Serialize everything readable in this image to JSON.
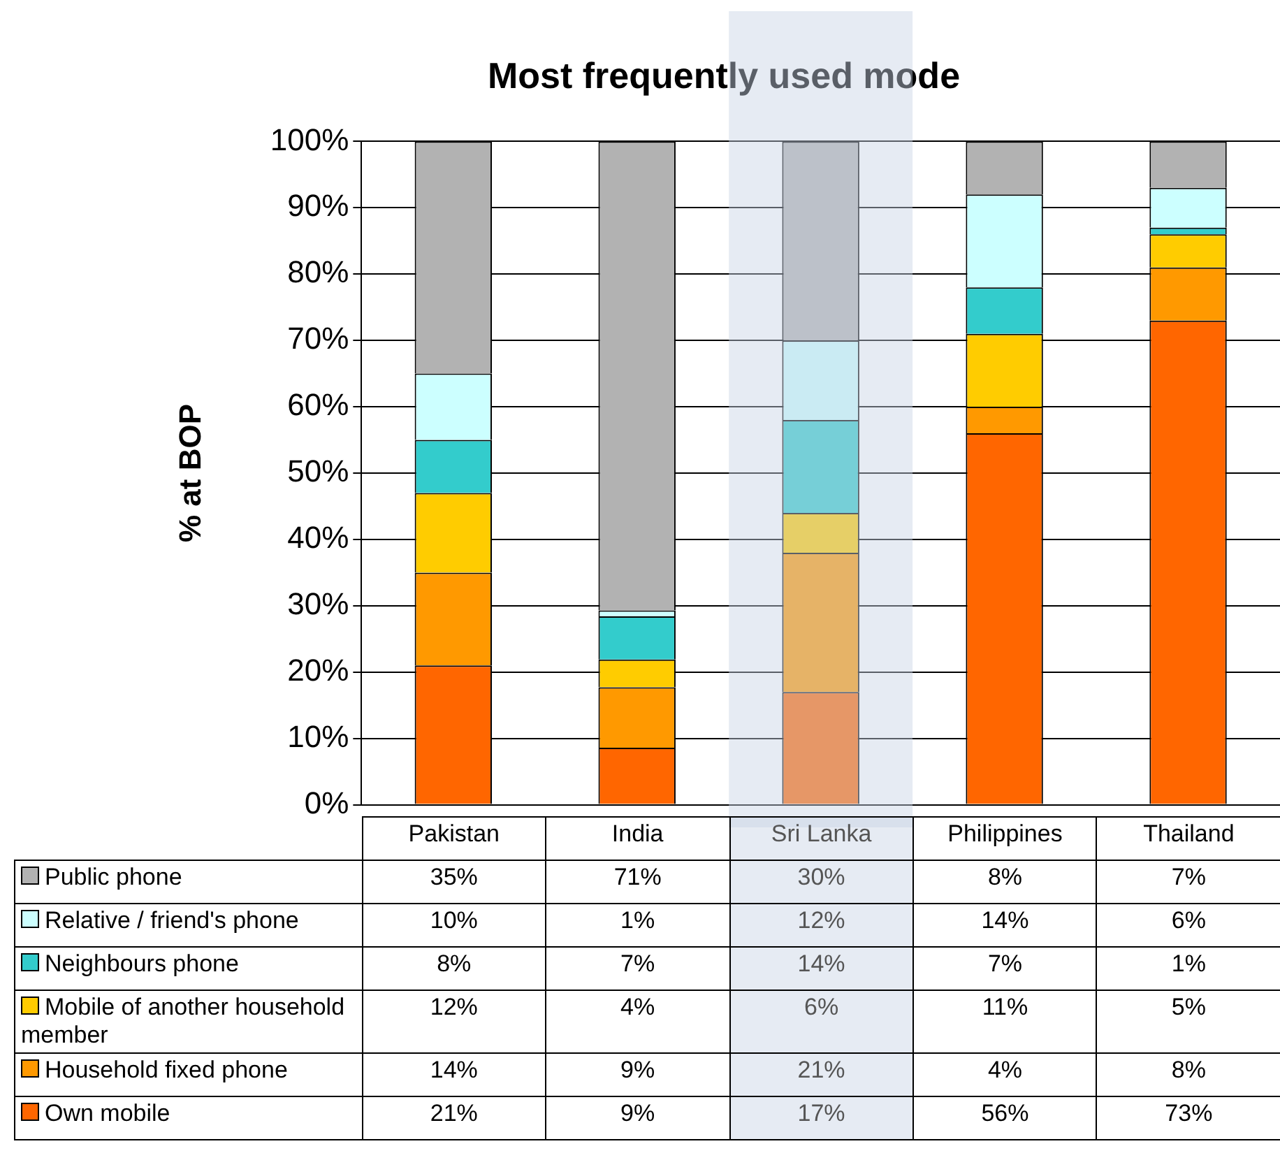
{
  "chart_data": {
    "type": "bar",
    "stacked": true,
    "title": "Most frequently used mode",
    "ylabel": "% at BOP",
    "categories": [
      "Pakistan",
      "India",
      "Sri Lanka",
      "Philippines",
      "Thailand"
    ],
    "series": [
      {
        "name": "Own mobile",
        "color": "#ff6600",
        "values": [
          21,
          8.6,
          17,
          56,
          73
        ],
        "value_labels": [
          "21%",
          "9%",
          "17%",
          "56%",
          "73%"
        ]
      },
      {
        "name": "Household fixed phone",
        "color": "#ff9900",
        "values": [
          14,
          9.1,
          21,
          4,
          8
        ],
        "value_labels": [
          "14%",
          "9%",
          "21%",
          "4%",
          "8%"
        ]
      },
      {
        "name": "Mobile of another household member",
        "color": "#ffcc00",
        "values": [
          12,
          4.2,
          6,
          11,
          5
        ],
        "value_labels": [
          "12%",
          "4%",
          "6%",
          "11%",
          "5%"
        ]
      },
      {
        "name": "Neighbours phone",
        "color": "#33cccc",
        "values": [
          8,
          6.5,
          14,
          7,
          1
        ],
        "value_labels": [
          "8%",
          "7%",
          "14%",
          "7%",
          "1%"
        ]
      },
      {
        "name": "Relative / friend's phone",
        "color": "#ccffff",
        "values": [
          10,
          0.9,
          12,
          14,
          6
        ],
        "value_labels": [
          "10%",
          "1%",
          "12%",
          "14%",
          "6%"
        ]
      },
      {
        "name": "Public phone",
        "color": "#b2b2b2",
        "values": [
          35,
          70.7,
          30,
          8,
          7
        ],
        "value_labels": [
          "35%",
          "71%",
          "30%",
          "8%",
          "7%"
        ]
      }
    ],
    "ylim": [
      0,
      100
    ],
    "yticks": [
      {
        "value": 0,
        "label": "0%"
      },
      {
        "value": 10,
        "label": "10%"
      },
      {
        "value": 20,
        "label": "20%"
      },
      {
        "value": 30,
        "label": "30%"
      },
      {
        "value": 40,
        "label": "40%"
      },
      {
        "value": 50,
        "label": "50%"
      },
      {
        "value": 60,
        "label": "60%"
      },
      {
        "value": 70,
        "label": "70%"
      },
      {
        "value": 80,
        "label": "80%"
      },
      {
        "value": 90,
        "label": "90%"
      },
      {
        "value": 100,
        "label": "100%"
      }
    ],
    "grid": "y",
    "legend": "bottom",
    "bands": [
      {
        "axis": "x",
        "from": "Sri Lanka",
        "to": "Sri Lanka",
        "color": "#c8d2e4"
      }
    ]
  }
}
